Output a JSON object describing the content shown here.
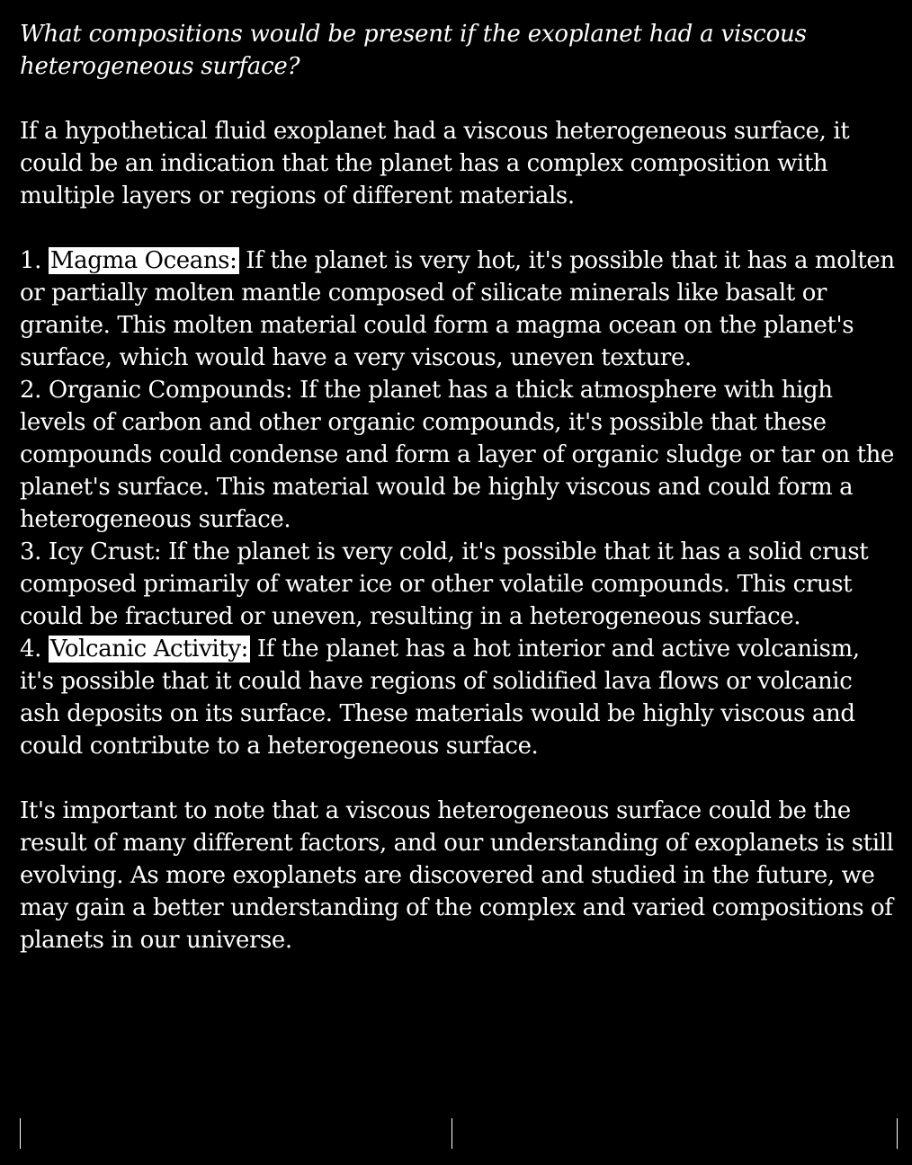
{
  "question": "What compositions would be present if the exoplanet had a viscous heterogeneous surface?",
  "intro": "If a hypothetical fluid exoplanet had a viscous heterogeneous surface, it could be an indication that the planet has a complex composition with multiple layers or regions of different materials.",
  "items": [
    {
      "number": "1.",
      "label": "Magma Oceans:",
      "highlighted": true,
      "text": "If the planet is very hot, it's possible that it has a molten or partially molten mantle composed of silicate minerals like basalt or granite. This molten material could form a magma ocean on the planet's surface, which would have a very viscous, uneven texture."
    },
    {
      "number": "2.",
      "label": "Organic Compounds:",
      "highlighted": false,
      "text": "If the planet has a thick atmosphere with high levels of carbon and other organic compounds, it's possible that these compounds could condense and form a layer of organic sludge or tar on the planet's surface. This material would be highly viscous and could form a heterogeneous surface."
    },
    {
      "number": "3.",
      "label": "Icy Crust:",
      "highlighted": false,
      "text": "If the planet is very cold, it's possible that it has a solid crust composed primarily of water ice or other volatile compounds. This crust could be fractured or uneven, resulting in a heterogeneous surface."
    },
    {
      "number": "4.",
      "label": "Volcanic Activity:",
      "highlighted": true,
      "text": "If the planet has a hot interior and active volcanism, it's possible that it could have regions of solidified lava flows or volcanic ash deposits on its surface. These materials would be highly viscous and could contribute to a heterogeneous surface."
    }
  ],
  "conclusion": "It's important to note that a viscous heterogeneous surface could be the result of many different factors, and our understanding of exoplanets is still evolving. As more exoplanets are discovered and studied in the future, we may gain a better understanding of the complex and varied compositions of planets in our universe.",
  "colors": {
    "background": "#000000",
    "text": "#ffffff",
    "highlight_bg": "#ffffff",
    "highlight_text": "#000000"
  }
}
